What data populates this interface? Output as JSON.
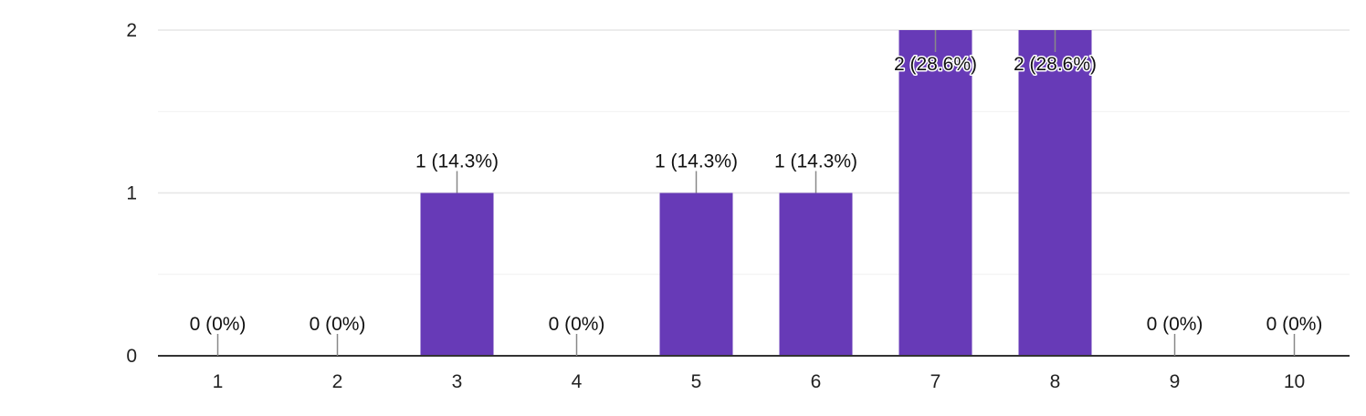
{
  "colors": {
    "bar": "#673ab7",
    "grid": "#e6e6e6",
    "grid_minor": "#f1f1f1",
    "axis": "#333333",
    "leader": "#888888",
    "text": "#222222"
  },
  "chart_data": {
    "type": "bar",
    "categories": [
      "1",
      "2",
      "3",
      "4",
      "5",
      "6",
      "7",
      "8",
      "9",
      "10"
    ],
    "values": [
      0,
      0,
      1,
      0,
      1,
      1,
      2,
      2,
      0,
      0
    ],
    "data_labels": [
      "0 (0%)",
      "0 (0%)",
      "1 (14.3%)",
      "0 (0%)",
      "1 (14.3%)",
      "1 (14.3%)",
      "2 (28.6%)",
      "2 (28.6%)",
      "0 (0%)",
      "0 (0%)"
    ],
    "y_ticks": [
      0,
      1,
      2
    ],
    "ylim": [
      0,
      2
    ],
    "grid": true,
    "legend": "none"
  }
}
